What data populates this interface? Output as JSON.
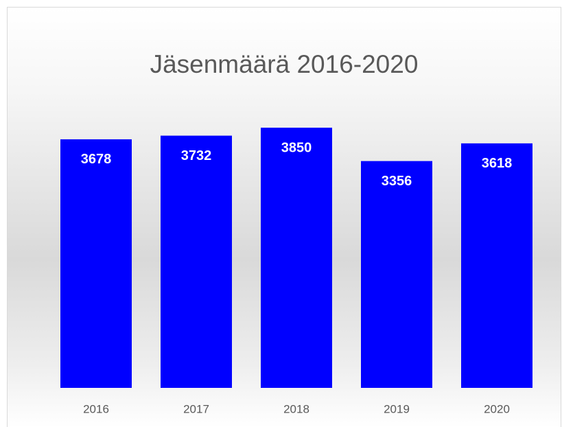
{
  "chart_data": {
    "type": "bar",
    "title": "Jäsenmäärä 2016-2020",
    "categories": [
      "2016",
      "2017",
      "2018",
      "2019",
      "2020"
    ],
    "values": [
      3678,
      3732,
      3850,
      3356,
      3618
    ],
    "color": "#0000ff",
    "ylim": [
      0,
      4500
    ]
  }
}
